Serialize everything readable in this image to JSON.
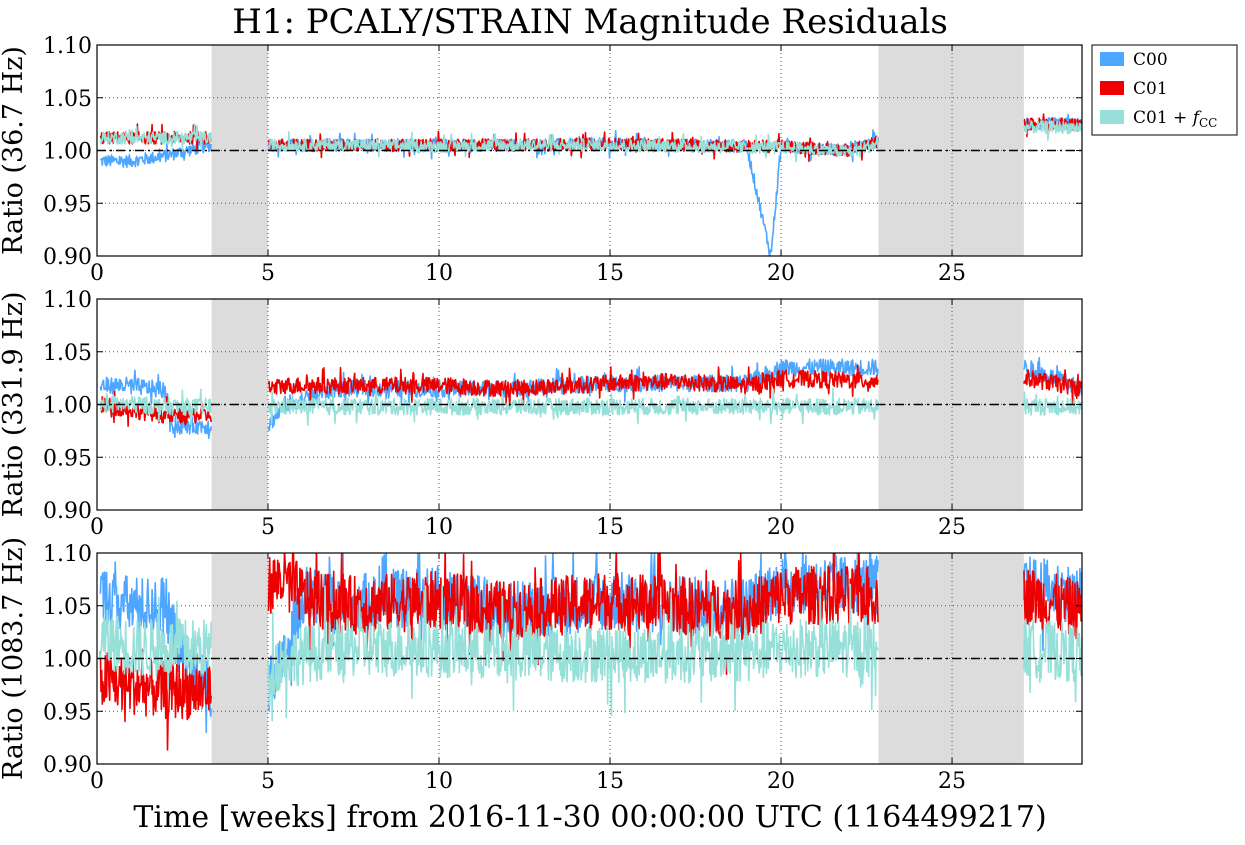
{
  "figure": {
    "title": "H1: PCALY/STRAIN Magnitude Residuals",
    "xlabel": "Time [weeks] from 2016-11-30 00:00:00 UTC (1164499217)"
  },
  "legend": {
    "placement": "outside top-right",
    "entries": [
      {
        "label": "C00",
        "color": "#4da6ff"
      },
      {
        "label": "C01",
        "color": "#ee0000"
      },
      {
        "label_main": "C01 + ",
        "label_math": "f",
        "label_sub": "CC",
        "color": "#96e0d9"
      }
    ]
  },
  "colors": {
    "c00": "#4da6ff",
    "c01": "#ee0000",
    "c01_fcc": "#96e0d9",
    "gap": "#dcdcdc",
    "reference": "#000000"
  },
  "chart_data": [
    {
      "type": "line",
      "ylabel": "Ratio (36.7 Hz)",
      "xlim": [
        0,
        28.8
      ],
      "ylim": [
        0.9,
        1.1
      ],
      "xticks": [
        0,
        5,
        10,
        15,
        20,
        25
      ],
      "yticks": [
        0.9,
        0.95,
        1.0,
        1.05,
        1.1
      ],
      "grid": true,
      "reference_line": 1.0,
      "gaps": [
        [
          3.35,
          5.0
        ],
        [
          22.85,
          27.1
        ]
      ],
      "series": [
        {
          "name": "C00",
          "x": [
            0.1,
            1.0,
            2.0,
            3.3,
            5.0,
            7.0,
            10.0,
            12.0,
            15.0,
            17.0,
            19.0,
            19.7,
            20.0,
            22.0,
            22.8,
            27.2,
            28.8
          ],
          "y": [
            0.99,
            0.99,
            0.995,
            1.005,
            1.005,
            1.005,
            1.005,
            1.005,
            1.006,
            1.005,
            1.004,
            0.9,
            1.004,
            1.0,
            1.008,
            1.025,
            1.025
          ]
        },
        {
          "name": "C01",
          "x": [
            0.1,
            1.0,
            2.0,
            3.3,
            5.0,
            7.0,
            10.0,
            12.0,
            15.0,
            17.0,
            19.0,
            20.0,
            22.0,
            22.8,
            27.2,
            28.8
          ],
          "y": [
            1.012,
            1.012,
            1.012,
            1.012,
            1.005,
            1.005,
            1.005,
            1.005,
            1.006,
            1.005,
            1.004,
            1.004,
            1.0,
            1.008,
            1.025,
            1.025
          ]
        },
        {
          "name": "C01 + fCC",
          "x": [
            0.1,
            1.0,
            2.0,
            3.3,
            5.0,
            7.0,
            10.0,
            12.0,
            15.0,
            17.0,
            19.0,
            20.0,
            22.0,
            22.8,
            27.2,
            28.8
          ],
          "y": [
            1.012,
            1.012,
            1.012,
            1.012,
            1.005,
            1.005,
            1.004,
            1.005,
            1.005,
            1.004,
            1.003,
            1.003,
            0.999,
            1.006,
            1.022,
            1.022
          ]
        }
      ]
    },
    {
      "type": "line",
      "ylabel": "Ratio (331.9 Hz)",
      "xlim": [
        0,
        28.8
      ],
      "ylim": [
        0.9,
        1.1
      ],
      "xticks": [
        0,
        5,
        10,
        15,
        20,
        25
      ],
      "yticks": [
        0.9,
        0.95,
        1.0,
        1.05,
        1.1
      ],
      "grid": true,
      "reference_line": 1.0,
      "gaps": [
        [
          3.35,
          5.0
        ],
        [
          22.85,
          27.1
        ]
      ],
      "series": [
        {
          "name": "C00",
          "x": [
            0.1,
            1.0,
            2.0,
            2.2,
            3.3,
            5.0,
            5.5,
            7.0,
            10.0,
            12.0,
            15.0,
            17.0,
            19.0,
            20.0,
            22.8,
            27.2,
            28.8
          ],
          "y": [
            1.018,
            1.018,
            1.013,
            0.98,
            0.98,
            0.98,
            1.0,
            1.015,
            1.015,
            1.015,
            1.02,
            1.02,
            1.02,
            1.035,
            1.035,
            1.035,
            1.015
          ]
        },
        {
          "name": "C01",
          "x": [
            0.1,
            1.0,
            2.0,
            3.3,
            5.0,
            5.5,
            7.0,
            10.0,
            12.0,
            15.0,
            17.0,
            19.0,
            20.0,
            22.8,
            27.2,
            28.8
          ],
          "y": [
            1.0,
            0.995,
            0.99,
            0.99,
            1.015,
            1.018,
            1.018,
            1.018,
            1.015,
            1.02,
            1.022,
            1.018,
            1.025,
            1.022,
            1.025,
            1.015
          ]
        },
        {
          "name": "C01 + fCC",
          "x": [
            0.1,
            1.0,
            2.0,
            3.3,
            5.0,
            7.0,
            10.0,
            12.0,
            15.0,
            17.0,
            19.0,
            20.0,
            22.8,
            27.2,
            28.8
          ],
          "y": [
            1.0,
            1.0,
            0.998,
            0.998,
            0.998,
            0.998,
            0.998,
            0.998,
            0.998,
            0.998,
            0.998,
            0.998,
            0.998,
            0.998,
            0.998
          ]
        }
      ]
    },
    {
      "type": "line",
      "ylabel": "Ratio (1083.7 Hz)",
      "xlim": [
        0,
        28.8
      ],
      "ylim": [
        0.9,
        1.1
      ],
      "xticks": [
        0,
        5,
        10,
        15,
        20,
        25
      ],
      "yticks": [
        0.9,
        0.95,
        1.0,
        1.05,
        1.1
      ],
      "grid": true,
      "reference_line": 1.0,
      "gaps": [
        [
          3.35,
          5.0
        ],
        [
          22.85,
          27.1
        ]
      ],
      "series": [
        {
          "name": "C00",
          "x": [
            0.1,
            1.0,
            2.0,
            2.5,
            3.3,
            5.0,
            5.5,
            6.0,
            7.0,
            10.0,
            12.0,
            15.0,
            17.0,
            19.0,
            20.0,
            22.8,
            27.2,
            28.8
          ],
          "y": [
            1.06,
            1.05,
            1.05,
            1.0,
            0.97,
            0.97,
            1.0,
            1.06,
            1.05,
            1.06,
            1.045,
            1.055,
            1.05,
            1.05,
            1.07,
            1.07,
            1.07,
            1.06
          ]
        },
        {
          "name": "C01",
          "x": [
            0.1,
            1.0,
            2.0,
            3.3,
            5.0,
            5.5,
            6.0,
            7.0,
            10.0,
            12.0,
            15.0,
            17.0,
            19.0,
            20.0,
            22.8,
            27.2,
            28.8
          ],
          "y": [
            0.98,
            0.975,
            0.97,
            0.97,
            1.07,
            1.075,
            1.06,
            1.05,
            1.055,
            1.045,
            1.055,
            1.05,
            1.045,
            1.06,
            1.06,
            1.06,
            1.045
          ]
        },
        {
          "name": "C01 + fCC",
          "x": [
            0.1,
            1.0,
            2.0,
            3.3,
            5.0,
            5.5,
            7.0,
            10.0,
            12.0,
            15.0,
            17.0,
            19.0,
            20.0,
            22.8,
            27.2,
            28.8
          ],
          "y": [
            1.02,
            1.01,
            1.01,
            1.01,
            0.99,
            1.0,
            1.01,
            1.01,
            1.005,
            1.005,
            1.005,
            1.005,
            1.01,
            1.01,
            1.01,
            1.005
          ]
        }
      ]
    }
  ]
}
